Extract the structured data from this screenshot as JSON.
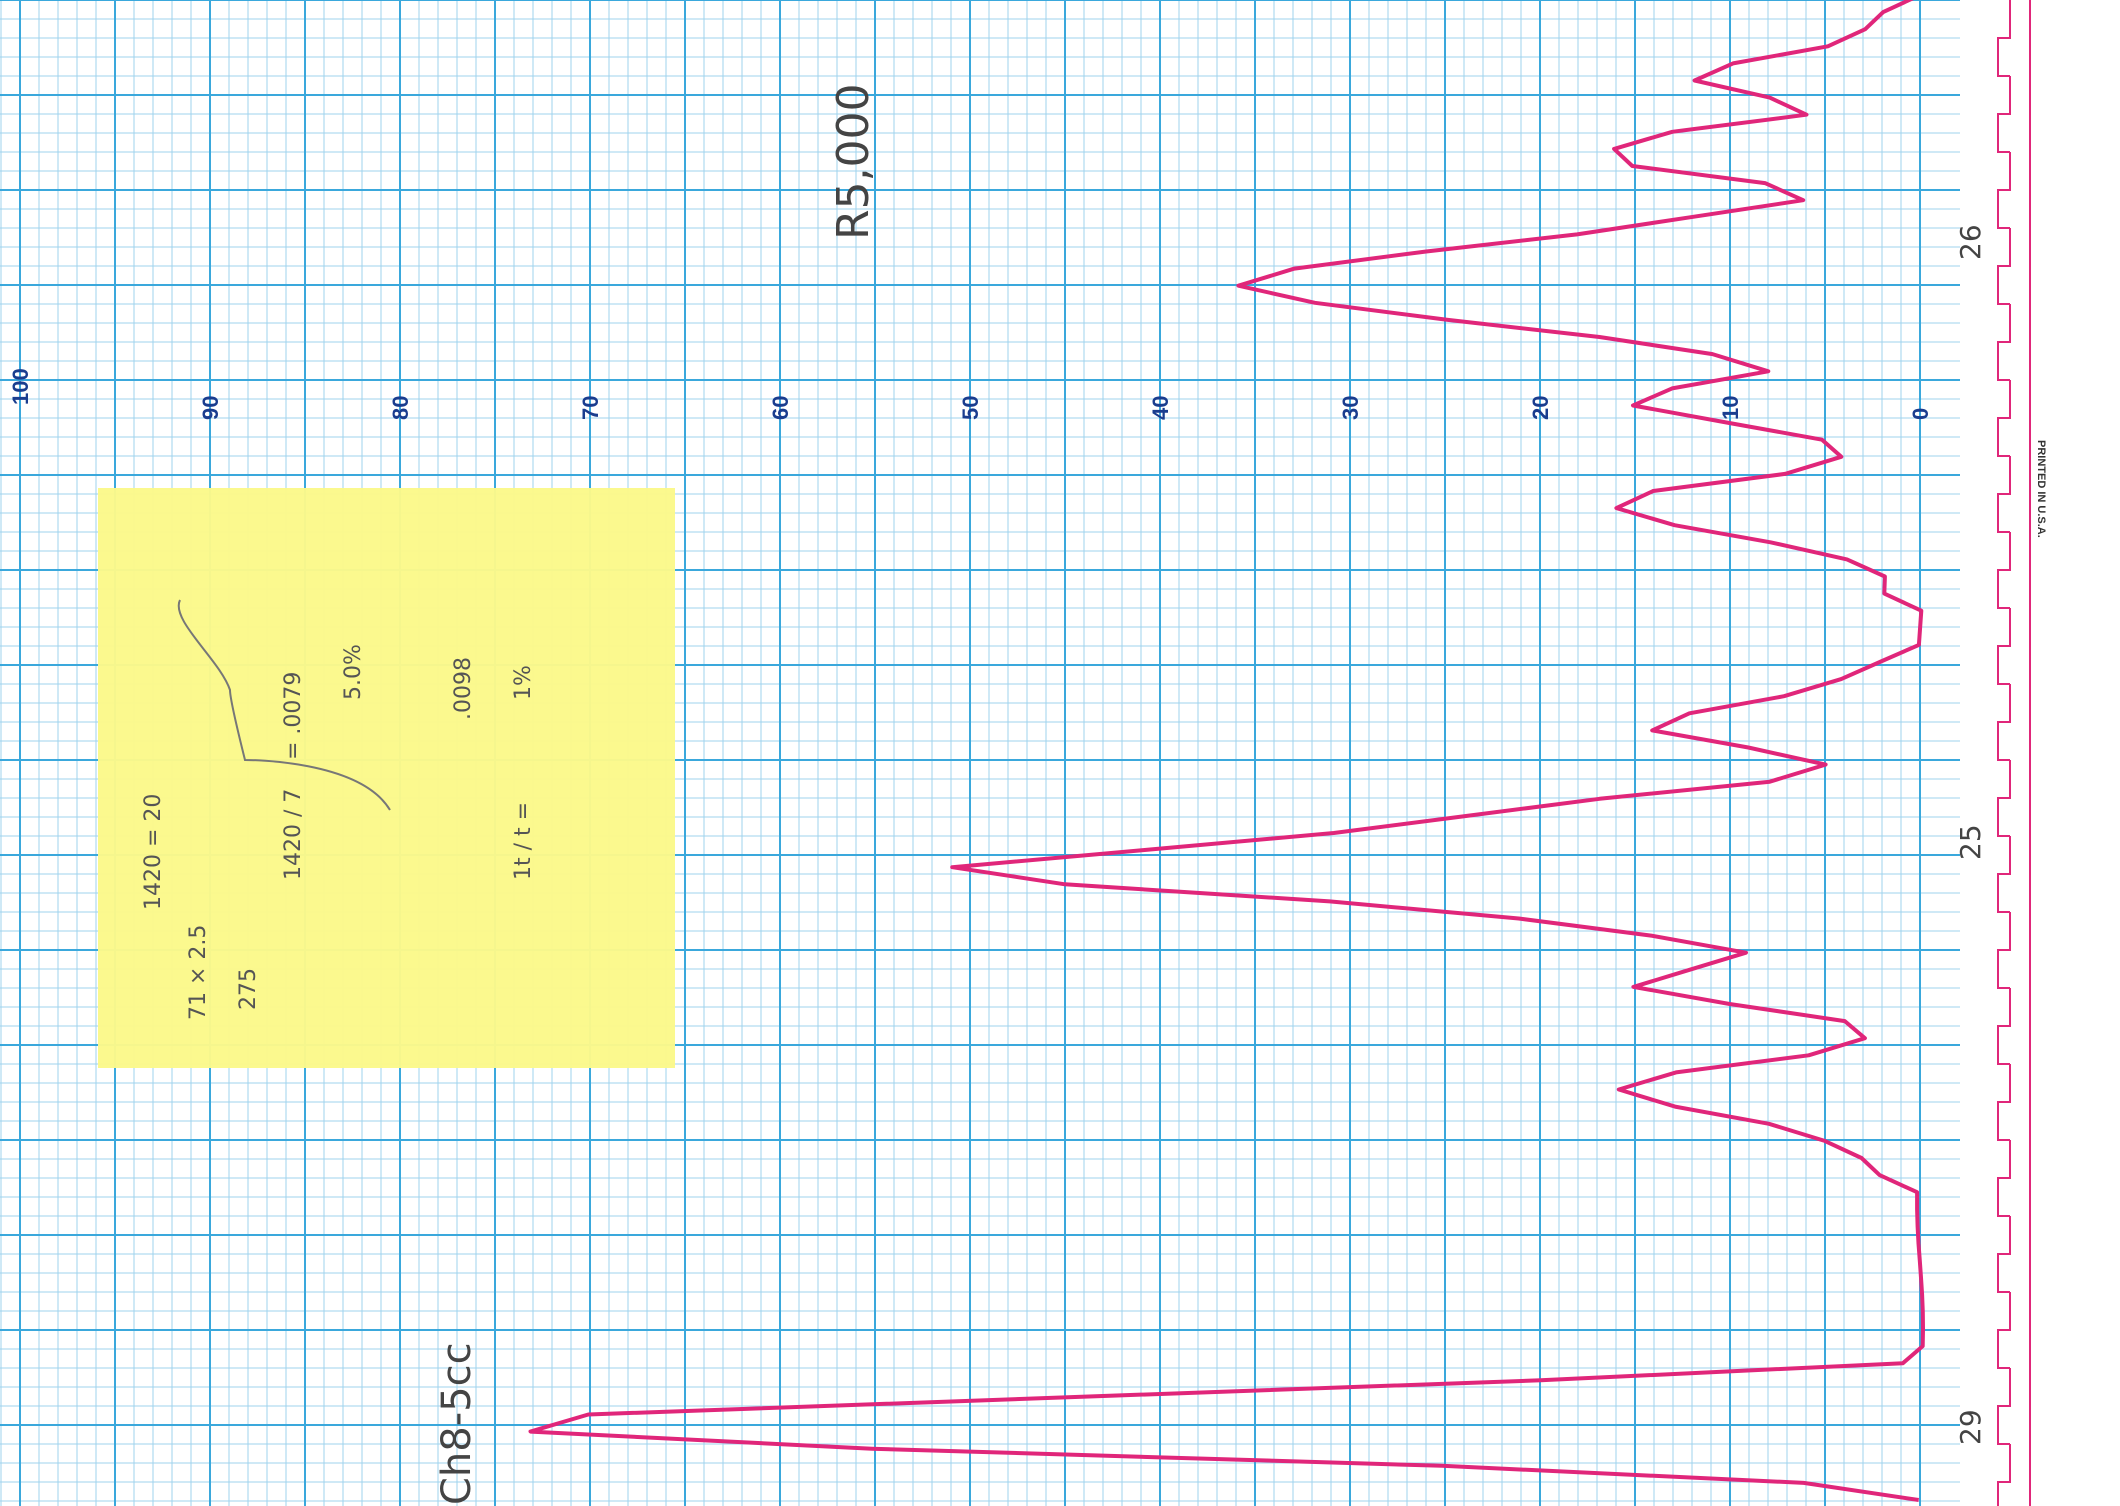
{
  "chart_data": {
    "type": "line",
    "title": "",
    "xlabel": "",
    "ylabel": "",
    "ylim": [
      0,
      100
    ],
    "y_ticks": [
      "0",
      "10",
      "20",
      "30",
      "40",
      "50",
      "60",
      "70",
      "80",
      "90",
      "100"
    ],
    "grid": true,
    "orientation": "rotated 90° (value axis runs along the top, increasing to the left)",
    "series": [
      {
        "trace": "strip chart recorder pen trace",
        "color": "#e0267a",
        "values": [
          0,
          2,
          3,
          5,
          10,
          12,
          8,
          6,
          13,
          16,
          15,
          8,
          6,
          12,
          18,
          26,
          33,
          36,
          32,
          25,
          17,
          11,
          8,
          13,
          15,
          10,
          5,
          4,
          7,
          14,
          16,
          13,
          8,
          4,
          2,
          2,
          0,
          0,
          0,
          2,
          4,
          7,
          12,
          14,
          9,
          5,
          8,
          17,
          24,
          31,
          41,
          51,
          45,
          31,
          21,
          14,
          9,
          12,
          15,
          10,
          4,
          3,
          6,
          13,
          16,
          13,
          8,
          5,
          3,
          2,
          0,
          0,
          0,
          0,
          0,
          0,
          0,
          0,
          0,
          0,
          1,
          20,
          45,
          70,
          73,
          55,
          25,
          6,
          0
        ]
      }
    ],
    "annotations": {
      "top_right": "R5,000",
      "bottom_left": "Ch8-5cc",
      "printed_mark": "PRINTED IN U.S.A.",
      "right_margin_marks": [
        "26",
        "25",
        "29"
      ]
    },
    "sticky_note": {
      "line1": "71 × 2.5",
      "line2": "275",
      "line3": "1420 = 20",
      "line4": "1420 / 7",
      "line5": "= .0079",
      "line6": "5.0%",
      "line7": "1t / t =",
      "line8": ".0098",
      "line9": "1%"
    },
    "colors": {
      "paper": "#ffffff",
      "grid_minor": "#9fd3ee",
      "grid_major": "#3aa8dc",
      "trace": "#e0267a",
      "sticky_note": "#fbf98a",
      "tick_labels": "#1a3d8f"
    }
  }
}
